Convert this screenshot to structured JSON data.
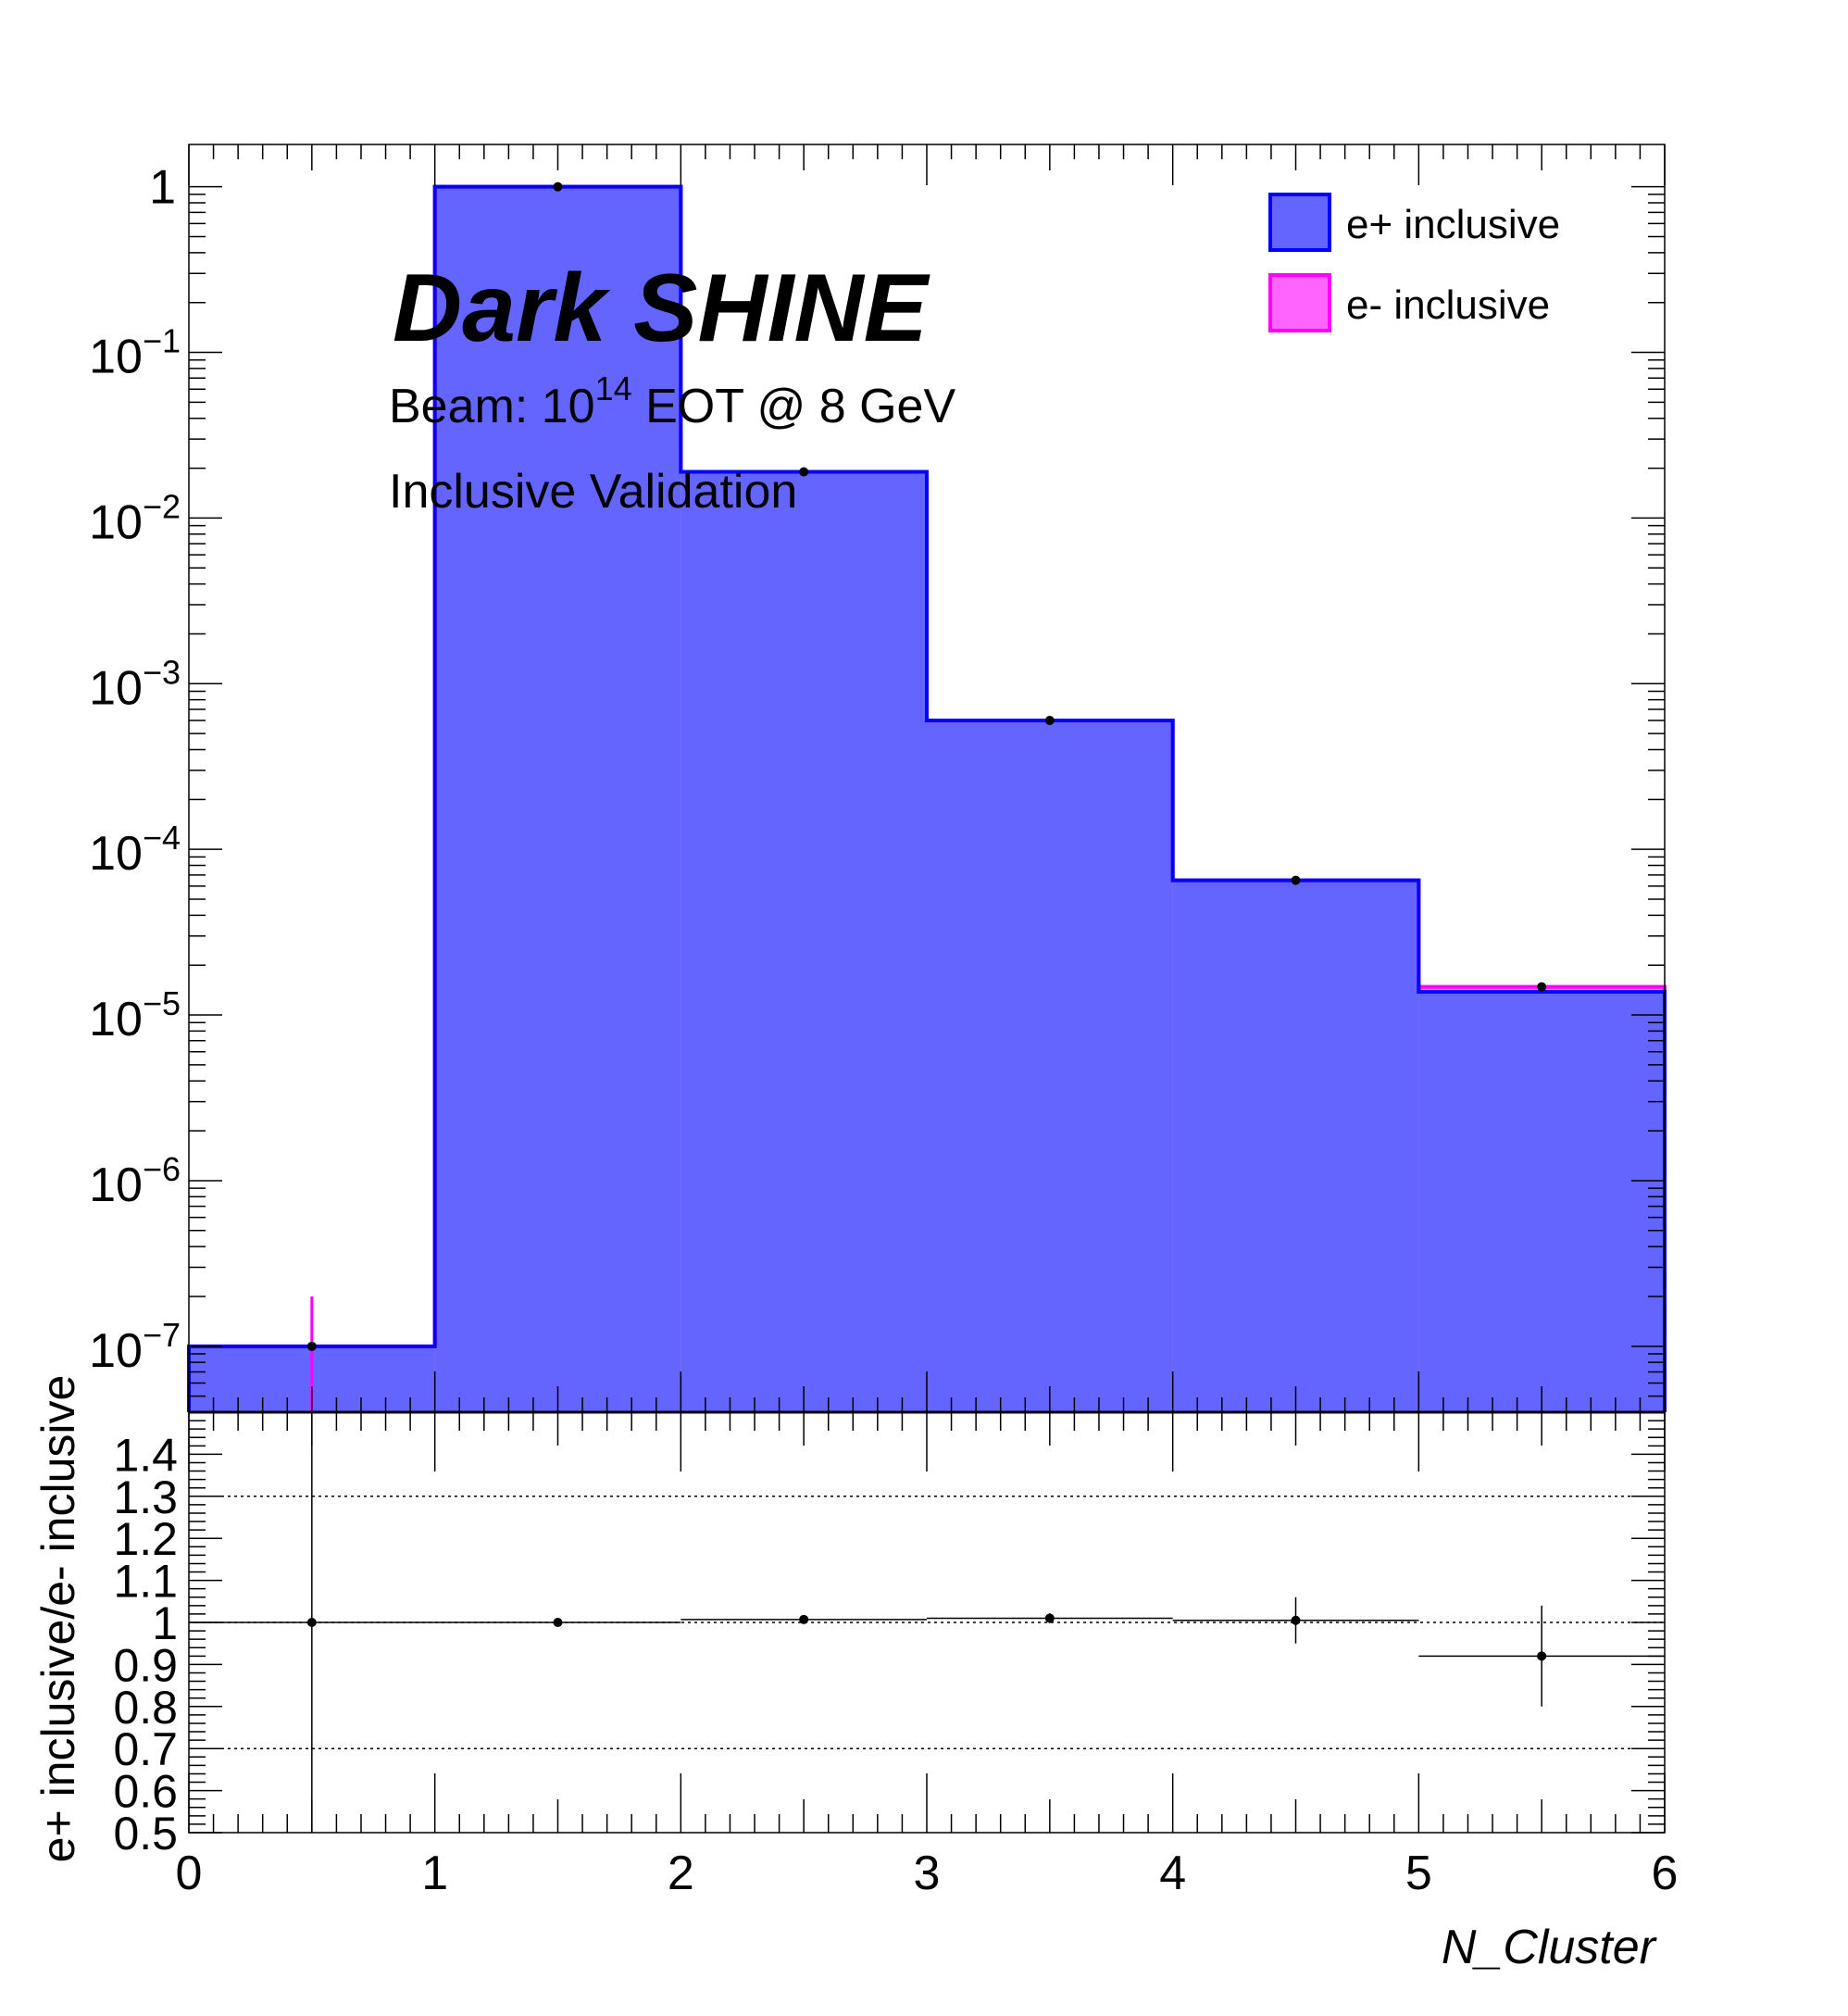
{
  "chart_data": {
    "type": "bar",
    "xlabel": "N_Cluster",
    "x_bin_edges": [
      0,
      1,
      2,
      3,
      4,
      5,
      6
    ],
    "x_ticks": [
      "0",
      "1",
      "2",
      "3",
      "4",
      "5",
      "6"
    ],
    "main_panel": {
      "yscale": "log",
      "ylim": [
        4e-08,
        1.8
      ],
      "y_ticks": [
        {
          "mantissa": "1",
          "exp": ""
        },
        {
          "mantissa": "10",
          "exp": "−1"
        },
        {
          "mantissa": "10",
          "exp": "−2"
        },
        {
          "mantissa": "10",
          "exp": "−3"
        },
        {
          "mantissa": "10",
          "exp": "−4"
        },
        {
          "mantissa": "10",
          "exp": "−5"
        },
        {
          "mantissa": "10",
          "exp": "−6"
        },
        {
          "mantissa": "10",
          "exp": "−7"
        }
      ],
      "series": [
        {
          "name": "e+ inclusive",
          "style": "filled",
          "fill": "#6464ff",
          "line": "#0000ff",
          "values": [
            1e-07,
            1.0,
            0.019,
            0.0006,
            6.5e-05,
            1.38e-05
          ]
        },
        {
          "name": "e- inclusive",
          "style": "filled",
          "fill": "#ff64ff",
          "line": "#ff00ff",
          "values": [
            1e-07,
            1.0,
            0.019,
            0.0006,
            6.5e-05,
            1.48e-05
          ],
          "points": [
            {
              "x": 0.5,
              "y": 1e-07,
              "err": 1e-07
            },
            {
              "x": 1.5,
              "y": 1.0,
              "err": 0
            },
            {
              "x": 2.5,
              "y": 0.019,
              "err": 0
            },
            {
              "x": 3.5,
              "y": 0.0006,
              "err": 0
            },
            {
              "x": 4.5,
              "y": 6.5e-05,
              "err": 0
            },
            {
              "x": 5.5,
              "y": 1.48e-05,
              "err": 0
            }
          ]
        }
      ],
      "legend_placement": "top-right"
    },
    "ratio_panel": {
      "ylabel": "e+ inclusive/e- inclusive",
      "ylim": [
        0.5,
        1.5
      ],
      "y_ticks": [
        "0.5",
        "0.6",
        "0.7",
        "0.8",
        "0.9",
        "1",
        "1.1",
        "1.2",
        "1.3",
        "1.4"
      ],
      "reference_lines": [
        0.7,
        1.0,
        1.3
      ],
      "points": [
        {
          "x": 0.5,
          "y": 1.0,
          "yerr": 1.0
        },
        {
          "x": 1.5,
          "y": 1.0,
          "yerr": 0.0
        },
        {
          "x": 2.5,
          "y": 1.007,
          "yerr": 0.003
        },
        {
          "x": 3.5,
          "y": 1.01,
          "yerr": 0.012
        },
        {
          "x": 4.5,
          "y": 1.005,
          "yerr": 0.055
        },
        {
          "x": 5.5,
          "y": 0.92,
          "yerr": 0.12
        }
      ]
    },
    "annotations": {
      "brand": "Dark SHINE",
      "beam_prefix": "Beam: 10",
      "beam_exp": "14",
      "beam_suffix": " EOT @ 8 GeV",
      "subtitle": "Inclusive Validation"
    }
  }
}
